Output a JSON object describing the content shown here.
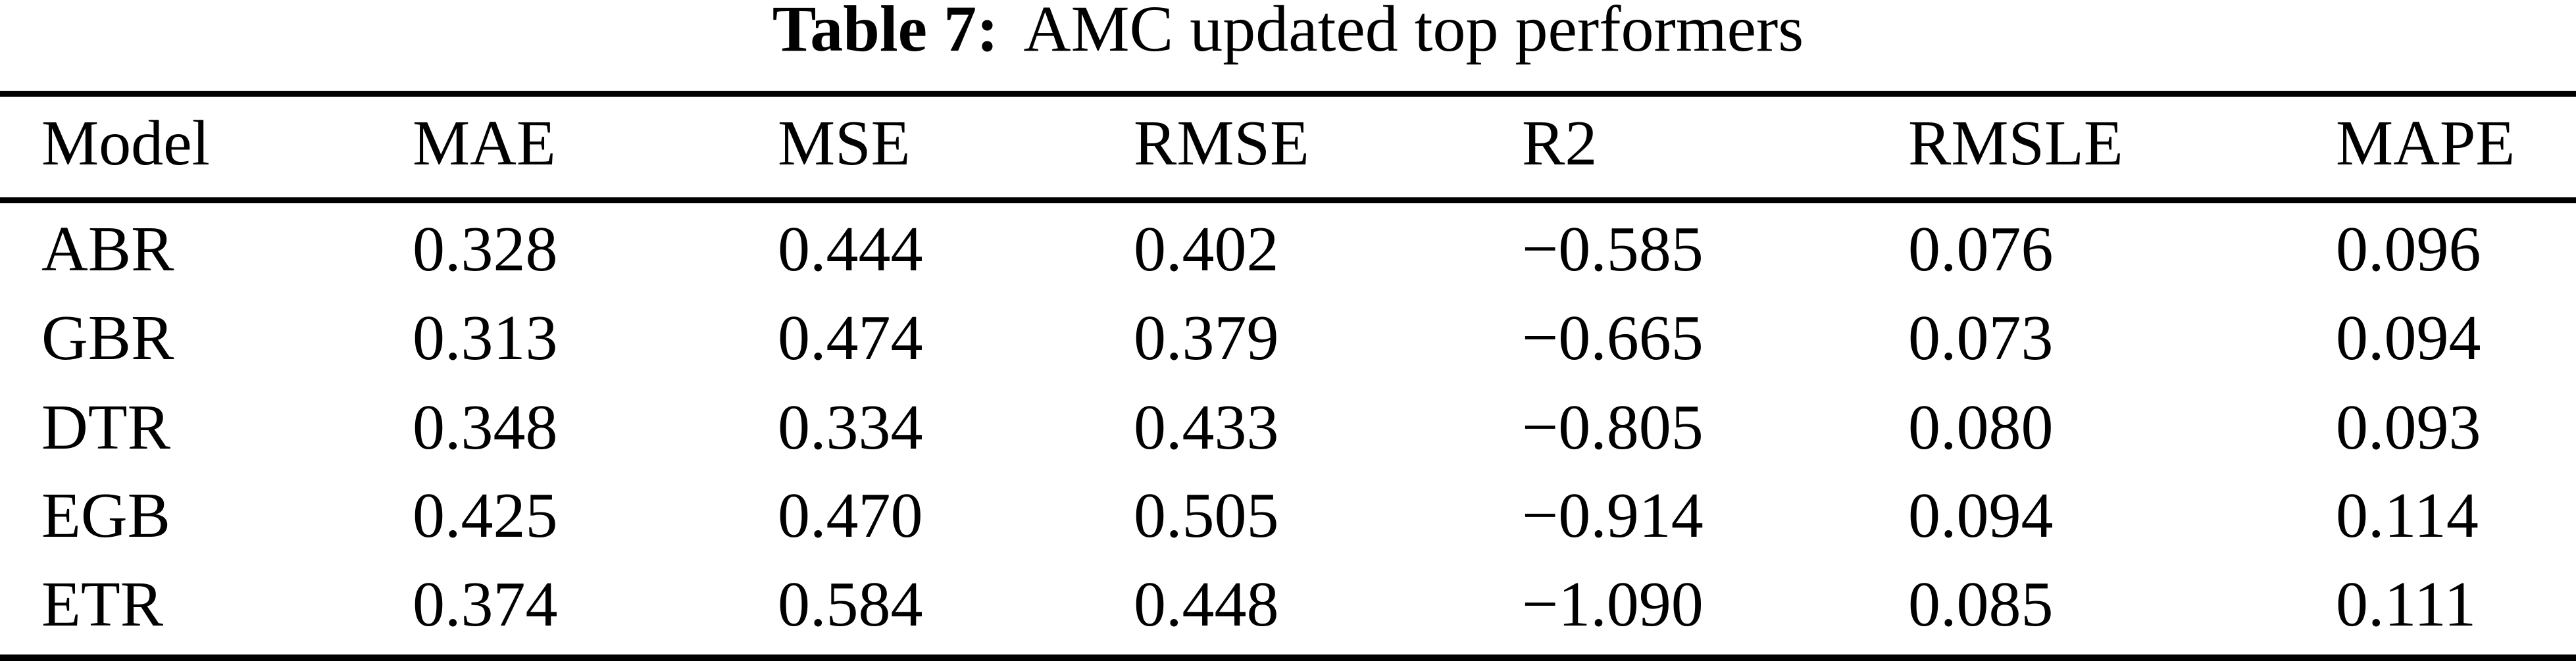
{
  "caption": {
    "label": "Table 7:",
    "text": "AMC updated top performers"
  },
  "table": {
    "columns": [
      "Model",
      "MAE",
      "MSE",
      "RMSE",
      "R2",
      "RMSLE",
      "MAPE"
    ],
    "rows": [
      {
        "model": "ABR",
        "mae": "0.328",
        "mse": "0.444",
        "rmse": "0.402",
        "r2": "−0.585",
        "rmsle": "0.076",
        "mape": "0.096"
      },
      {
        "model": "GBR",
        "mae": "0.313",
        "mse": "0.474",
        "rmse": "0.379",
        "r2": "−0.665",
        "rmsle": "0.073",
        "mape": "0.094"
      },
      {
        "model": "DTR",
        "mae": "0.348",
        "mse": "0.334",
        "rmse": "0.433",
        "r2": "−0.805",
        "rmsle": "0.080",
        "mape": "0.093"
      },
      {
        "model": "EGB",
        "mae": "0.425",
        "mse": "0.470",
        "rmse": "0.505",
        "r2": "−0.914",
        "rmsle": "0.094",
        "mape": "0.114"
      },
      {
        "model": "ETR",
        "mae": "0.374",
        "mse": "0.584",
        "rmse": "0.448",
        "r2": "−1.090",
        "rmsle": "0.085",
        "mape": "0.111"
      }
    ]
  }
}
